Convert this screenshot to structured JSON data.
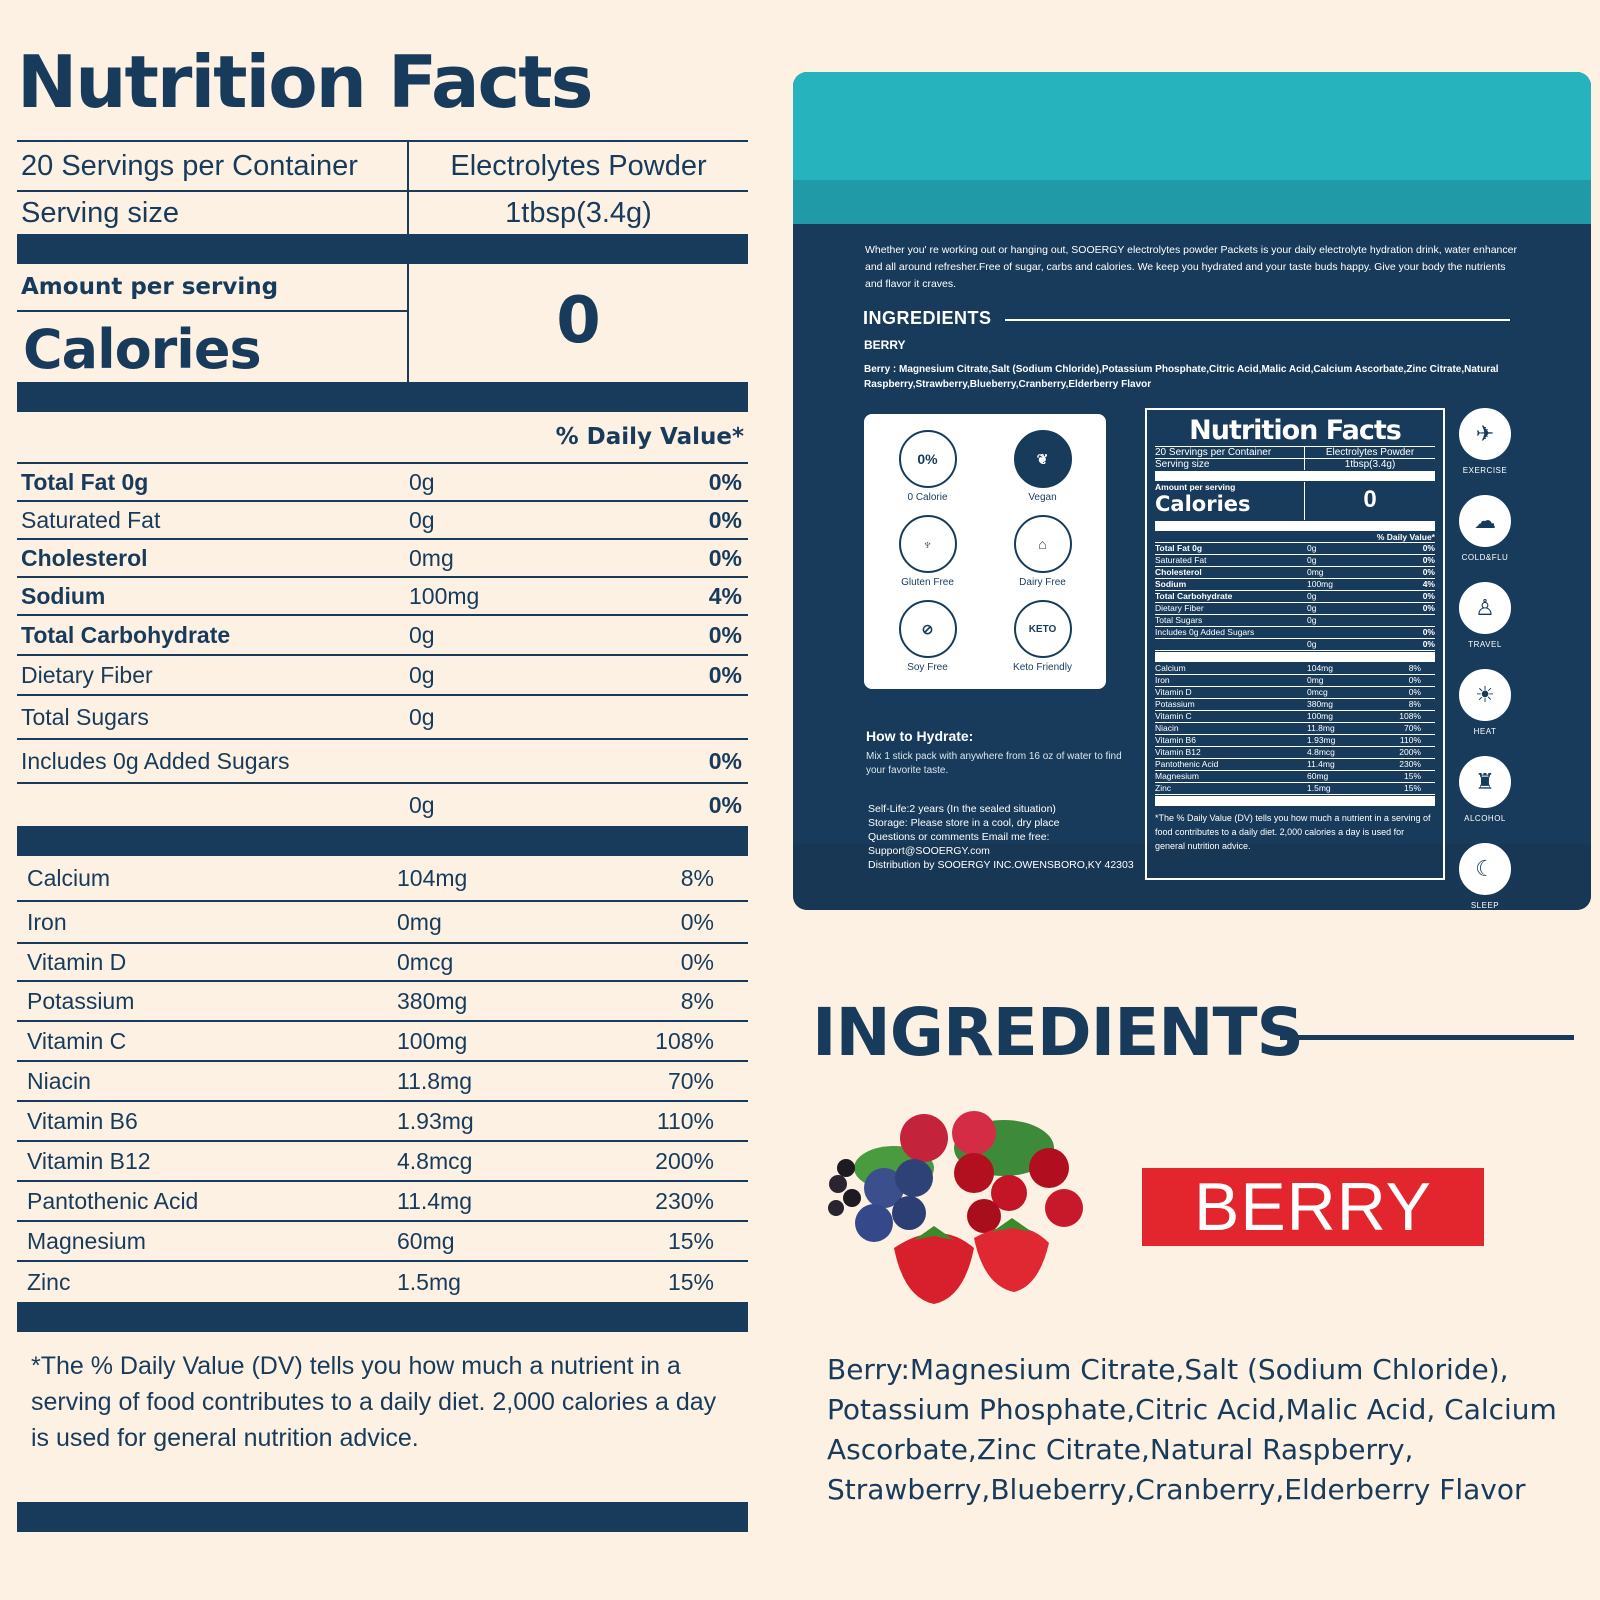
{
  "nutrition": {
    "title": "Nutrition Facts",
    "servings": "20 Servings per Container",
    "product": "Electrolytes Powder",
    "serving_size_label": "Serving size",
    "serving_size": "1tbsp(3.4g)",
    "amount_per_serving": "Amount per serving",
    "calories_label": "Calories",
    "calories": "0",
    "daily_value_header": "% Daily Value*",
    "rows": [
      {
        "name": "Total Fat 0g",
        "amount": "0g",
        "dv": "0%",
        "bold": true
      },
      {
        "name": "Saturated Fat",
        "amount": "0g",
        "dv": "0%",
        "bold": false
      },
      {
        "name": "Cholesterol",
        "amount": "0mg",
        "dv": "0%",
        "bold": true
      },
      {
        "name": "Sodium",
        "amount": "100mg",
        "dv": "4%",
        "bold": true
      },
      {
        "name": "Total Carbohydrate",
        "amount": "0g",
        "dv": "0%",
        "bold": true
      },
      {
        "name": "Dietary Fiber",
        "amount": "0g",
        "dv": "0%",
        "bold": false
      },
      {
        "name": "Total Sugars",
        "amount": "0g",
        "dv": "",
        "bold": false
      },
      {
        "name": "Includes 0g Added Sugars",
        "amount": "",
        "dv": "0%",
        "bold": false
      },
      {
        "name": "",
        "amount": "0g",
        "dv": "0%",
        "bold": false
      }
    ],
    "minerals": [
      {
        "name": "Calcium",
        "amount": "104mg",
        "dv": "8%"
      },
      {
        "name": "Iron",
        "amount": "0mg",
        "dv": "0%"
      },
      {
        "name": "Vitamin D",
        "amount": "0mcg",
        "dv": "0%"
      },
      {
        "name": "Potassium",
        "amount": "380mg",
        "dv": "8%"
      },
      {
        "name": "Vitamin C",
        "amount": "100mg",
        "dv": "108%"
      },
      {
        "name": "Niacin",
        "amount": "11.8mg",
        "dv": "70%"
      },
      {
        "name": "Vitamin B6",
        "amount": "1.93mg",
        "dv": "110%"
      },
      {
        "name": "Vitamin B12",
        "amount": "4.8mcg",
        "dv": "200%"
      },
      {
        "name": "Pantothenic Acid",
        "amount": "11.4mg",
        "dv": "230%"
      },
      {
        "name": "Magnesium",
        "amount": "60mg",
        "dv": "15%"
      },
      {
        "name": "Zinc",
        "amount": "1.5mg",
        "dv": "15%"
      }
    ],
    "footnote": "*The % Daily Value (DV) tells you how much a nutrient in a serving of food contributes to a daily diet. 2,000 calories a day is used for general nutrition advice."
  },
  "package": {
    "intro": "Whether you' re working out or hanging out, SOOERGY electrolytes powder Packets is your daily electrolyte hydration drink, water enhancer and all around refresher.Free of sugar, carbs and calories. We keep you hydrated and your taste buds happy. Give your body the nutrients and flavor it craves.",
    "ingredients_heading": "INGREDIENTS",
    "flavor": "BERRY",
    "ingredients_text": "Berry : Magnesium Citrate,Salt (Sodium Chloride),Potassium Phosphate,Citric Acid,Malic Acid,Calcium Ascorbate,Zinc Citrate,Natural Raspberry,Strawberry,Blueberry,Cranberry,Elderberry Flavor",
    "badges": [
      {
        "label": "0 Calorie",
        "icon": "zero-percent-icon",
        "glyph": "0%"
      },
      {
        "label": "Vegan",
        "icon": "vegan-leaf-icon",
        "glyph": "❦"
      },
      {
        "label": "Gluten Free",
        "icon": "wheat-icon",
        "glyph": "♆"
      },
      {
        "label": "Dairy Free",
        "icon": "milk-bottle-icon",
        "glyph": "⌂"
      },
      {
        "label": "Soy Free",
        "icon": "soybean-icon",
        "glyph": "⊘"
      },
      {
        "label": "Keto Friendly",
        "icon": "keto-friendly-icon",
        "glyph": "KETO"
      }
    ],
    "how_to_heading": "How to Hydrate:",
    "how_to_text": "Mix 1 stick pack with anywhere from 16 oz of water to find your favorite taste.",
    "shelf_life": "Self-Life:2 years (In the sealed situation)",
    "storage": "Storage: Please store in a cool, dry place",
    "questions": "Questions or comments Email me free:",
    "email": "Support@SOOERGY.com",
    "distribution": "Distribution by SOOERGY INC.OWENSBORO,KY 42303",
    "uses": [
      {
        "label": "EXERCISE",
        "icon": "exercise-icon",
        "glyph": "✈"
      },
      {
        "label": "COLD&FLU",
        "icon": "cold-flu-icon",
        "glyph": "☁"
      },
      {
        "label": "TRAVEL",
        "icon": "travel-icon",
        "glyph": "♙"
      },
      {
        "label": "HEAT",
        "icon": "sun-icon",
        "glyph": "☀"
      },
      {
        "label": "ALCOHOL",
        "icon": "wine-bottle-icon",
        "glyph": "♜"
      },
      {
        "label": "SLEEP",
        "icon": "bed-icon",
        "glyph": "☾"
      }
    ]
  },
  "ingredients": {
    "heading": "INGREDIENTS",
    "flavor": "BERRY",
    "text": "Berry:Magnesium Citrate,Salt (Sodium Chloride), Potassium Phosphate,Citric Acid,Malic Acid, Calcium Ascorbate,Zinc Citrate,Natural Raspberry, Strawberry,Blueberry,Cranberry,Elderberry Flavor"
  },
  "colors": {
    "navy": "#183b5b",
    "teal": "#27b3bd",
    "background": "#fcf1e3",
    "flavor_red": "#e3262d"
  }
}
